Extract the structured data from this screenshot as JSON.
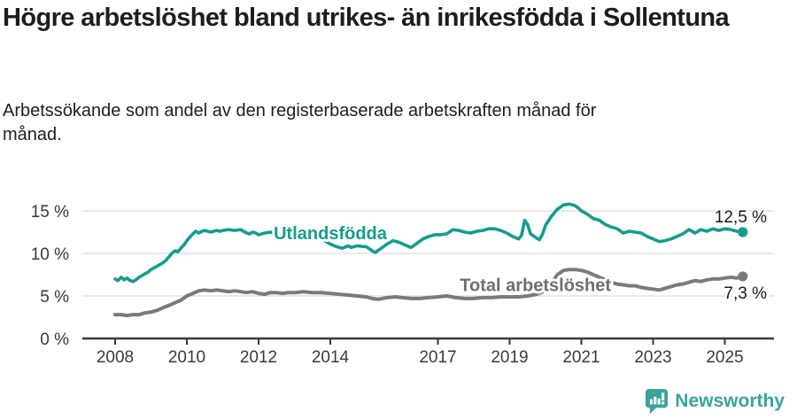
{
  "header": {
    "title": "Högre arbetslöshet bland utrikes- än inrikesfödda i Sollentuna",
    "subtitle": "Arbetssökande som andel av den registerbaserade arbetskraften månad för månad."
  },
  "footer": {
    "brand": "Newsworthy",
    "logo_icon": "bar-chart-speech-bubble-icon"
  },
  "colors": {
    "accent_teal": "#169b8d",
    "series_gray": "#7a7a7a",
    "gray_label": "#6e6e6e",
    "gridline": "#dcdcdc",
    "axis": "#3a3a3a",
    "text": "#1d1d1d",
    "brand_teal": "#3aa39b"
  },
  "chart_data": {
    "type": "line",
    "title": "Högre arbetslöshet bland utrikes- än inrikesfödda i Sollentuna",
    "subtitle": "Arbetssökande som andel av den registerbaserade arbetskraften månad för månad.",
    "xlabel": "",
    "ylabel": "",
    "grid": true,
    "legend_position": "inline-labels",
    "x_axis": {
      "range": [
        2007.1,
        2025.95
      ],
      "ticks": [
        2008,
        2010,
        2012,
        2014,
        2017,
        2019,
        2021,
        2023,
        2025
      ]
    },
    "y_axis": {
      "range": [
        0,
        16.8
      ],
      "ticks": [
        0,
        5,
        10,
        15
      ],
      "tick_labels": [
        "0 %",
        "5 %",
        "10 %",
        "15 %"
      ]
    },
    "series": [
      {
        "name": "Total arbetslöshet",
        "color": "#7a7a7a",
        "label_color": "#6e6e6e",
        "end_value": 7.3,
        "end_label": "7,3 %",
        "end_label_side": "below",
        "inline_label": {
          "x": 2019.72,
          "y": 6.3
        },
        "points": [
          [
            2008.0,
            2.8
          ],
          [
            2008.17,
            2.8
          ],
          [
            2008.33,
            2.7
          ],
          [
            2008.5,
            2.8
          ],
          [
            2008.67,
            2.8
          ],
          [
            2008.83,
            3.0
          ],
          [
            2009.0,
            3.1
          ],
          [
            2009.17,
            3.3
          ],
          [
            2009.33,
            3.6
          ],
          [
            2009.5,
            3.9
          ],
          [
            2009.67,
            4.2
          ],
          [
            2009.83,
            4.5
          ],
          [
            2010.0,
            5.0
          ],
          [
            2010.17,
            5.3
          ],
          [
            2010.33,
            5.6
          ],
          [
            2010.5,
            5.7
          ],
          [
            2010.67,
            5.6
          ],
          [
            2010.83,
            5.7
          ],
          [
            2011.0,
            5.6
          ],
          [
            2011.17,
            5.5
          ],
          [
            2011.33,
            5.6
          ],
          [
            2011.5,
            5.5
          ],
          [
            2011.67,
            5.4
          ],
          [
            2011.83,
            5.5
          ],
          [
            2012.0,
            5.3
          ],
          [
            2012.17,
            5.2
          ],
          [
            2012.33,
            5.4
          ],
          [
            2012.5,
            5.4
          ],
          [
            2012.67,
            5.3
          ],
          [
            2012.83,
            5.4
          ],
          [
            2013.0,
            5.4
          ],
          [
            2013.25,
            5.5
          ],
          [
            2013.5,
            5.4
          ],
          [
            2013.75,
            5.4
          ],
          [
            2014.0,
            5.3
          ],
          [
            2014.25,
            5.2
          ],
          [
            2014.5,
            5.1
          ],
          [
            2014.75,
            5.0
          ],
          [
            2015.0,
            4.9
          ],
          [
            2015.17,
            4.7
          ],
          [
            2015.33,
            4.6
          ],
          [
            2015.58,
            4.8
          ],
          [
            2015.83,
            4.9
          ],
          [
            2016.0,
            4.8
          ],
          [
            2016.25,
            4.7
          ],
          [
            2016.5,
            4.7
          ],
          [
            2016.75,
            4.8
          ],
          [
            2017.0,
            4.9
          ],
          [
            2017.25,
            5.0
          ],
          [
            2017.5,
            4.8
          ],
          [
            2017.75,
            4.7
          ],
          [
            2018.0,
            4.7
          ],
          [
            2018.25,
            4.8
          ],
          [
            2018.5,
            4.8
          ],
          [
            2018.75,
            4.9
          ],
          [
            2019.0,
            4.9
          ],
          [
            2019.25,
            4.9
          ],
          [
            2019.5,
            5.0
          ],
          [
            2019.75,
            5.2
          ],
          [
            2020.0,
            5.6
          ],
          [
            2020.17,
            6.5
          ],
          [
            2020.33,
            7.5
          ],
          [
            2020.5,
            8.0
          ],
          [
            2020.67,
            8.1
          ],
          [
            2020.83,
            8.1
          ],
          [
            2021.0,
            8.0
          ],
          [
            2021.17,
            7.8
          ],
          [
            2021.33,
            7.5
          ],
          [
            2021.5,
            7.2
          ],
          [
            2021.67,
            6.9
          ],
          [
            2021.83,
            6.6
          ],
          [
            2022.0,
            6.4
          ],
          [
            2022.17,
            6.3
          ],
          [
            2022.33,
            6.2
          ],
          [
            2022.5,
            6.2
          ],
          [
            2022.67,
            6.0
          ],
          [
            2022.83,
            5.9
          ],
          [
            2023.0,
            5.8
          ],
          [
            2023.17,
            5.7
          ],
          [
            2023.33,
            5.9
          ],
          [
            2023.5,
            6.1
          ],
          [
            2023.67,
            6.3
          ],
          [
            2023.83,
            6.4
          ],
          [
            2024.0,
            6.6
          ],
          [
            2024.17,
            6.8
          ],
          [
            2024.33,
            6.7
          ],
          [
            2024.5,
            6.9
          ],
          [
            2024.67,
            7.0
          ],
          [
            2024.83,
            7.0
          ],
          [
            2025.0,
            7.1
          ],
          [
            2025.17,
            7.2
          ],
          [
            2025.33,
            7.1
          ],
          [
            2025.5,
            7.3
          ]
        ]
      },
      {
        "name": "Utlandsfödda",
        "color": "#169b8d",
        "label_color": "#169b8d",
        "end_value": 12.5,
        "end_label": "12,5 %",
        "end_label_side": "above",
        "inline_label": {
          "x": 2014.0,
          "y": 12.4
        },
        "points": [
          [
            2008.0,
            7.0
          ],
          [
            2008.08,
            6.8
          ],
          [
            2008.17,
            7.2
          ],
          [
            2008.25,
            6.9
          ],
          [
            2008.33,
            7.1
          ],
          [
            2008.42,
            6.8
          ],
          [
            2008.5,
            6.7
          ],
          [
            2008.58,
            6.9
          ],
          [
            2008.67,
            7.2
          ],
          [
            2008.75,
            7.4
          ],
          [
            2008.83,
            7.6
          ],
          [
            2008.92,
            7.8
          ],
          [
            2009.0,
            8.1
          ],
          [
            2009.17,
            8.5
          ],
          [
            2009.33,
            8.9
          ],
          [
            2009.42,
            9.2
          ],
          [
            2009.5,
            9.6
          ],
          [
            2009.58,
            10.0
          ],
          [
            2009.67,
            10.3
          ],
          [
            2009.75,
            10.2
          ],
          [
            2009.83,
            10.6
          ],
          [
            2009.92,
            11.0
          ],
          [
            2010.0,
            11.5
          ],
          [
            2010.08,
            11.9
          ],
          [
            2010.17,
            12.3
          ],
          [
            2010.25,
            12.6
          ],
          [
            2010.33,
            12.4
          ],
          [
            2010.42,
            12.6
          ],
          [
            2010.5,
            12.7
          ],
          [
            2010.58,
            12.6
          ],
          [
            2010.67,
            12.5
          ],
          [
            2010.75,
            12.6
          ],
          [
            2010.83,
            12.7
          ],
          [
            2010.92,
            12.6
          ],
          [
            2011.0,
            12.7
          ],
          [
            2011.17,
            12.8
          ],
          [
            2011.33,
            12.7
          ],
          [
            2011.5,
            12.8
          ],
          [
            2011.58,
            12.6
          ],
          [
            2011.67,
            12.4
          ],
          [
            2011.75,
            12.3
          ],
          [
            2011.83,
            12.5
          ],
          [
            2011.92,
            12.4
          ],
          [
            2012.0,
            12.2
          ],
          [
            2012.17,
            12.4
          ],
          [
            2012.33,
            12.5
          ],
          [
            2012.5,
            12.3
          ],
          [
            2012.67,
            12.2
          ],
          [
            2012.83,
            12.1
          ],
          [
            2013.0,
            12.2
          ],
          [
            2013.17,
            12.1
          ],
          [
            2013.33,
            12.0
          ],
          [
            2013.5,
            11.9
          ],
          [
            2013.67,
            11.8
          ],
          [
            2013.83,
            11.5
          ],
          [
            2014.0,
            11.1
          ],
          [
            2014.17,
            10.8
          ],
          [
            2014.33,
            10.6
          ],
          [
            2014.5,
            10.9
          ],
          [
            2014.58,
            10.7
          ],
          [
            2014.75,
            10.9
          ],
          [
            2014.92,
            10.8
          ],
          [
            2015.0,
            10.8
          ],
          [
            2015.17,
            10.3
          ],
          [
            2015.25,
            10.1
          ],
          [
            2015.42,
            10.6
          ],
          [
            2015.58,
            11.1
          ],
          [
            2015.75,
            11.5
          ],
          [
            2015.92,
            11.3
          ],
          [
            2016.08,
            11.0
          ],
          [
            2016.25,
            10.7
          ],
          [
            2016.42,
            11.2
          ],
          [
            2016.58,
            11.7
          ],
          [
            2016.75,
            12.0
          ],
          [
            2016.92,
            12.2
          ],
          [
            2017.08,
            12.2
          ],
          [
            2017.25,
            12.3
          ],
          [
            2017.42,
            12.8
          ],
          [
            2017.58,
            12.7
          ],
          [
            2017.75,
            12.5
          ],
          [
            2017.92,
            12.4
          ],
          [
            2018.08,
            12.6
          ],
          [
            2018.25,
            12.7
          ],
          [
            2018.42,
            12.9
          ],
          [
            2018.58,
            12.9
          ],
          [
            2018.75,
            12.7
          ],
          [
            2018.92,
            12.4
          ],
          [
            2019.08,
            12.0
          ],
          [
            2019.25,
            11.7
          ],
          [
            2019.33,
            12.1
          ],
          [
            2019.42,
            13.9
          ],
          [
            2019.5,
            13.4
          ],
          [
            2019.58,
            12.3
          ],
          [
            2019.75,
            11.8
          ],
          [
            2019.83,
            11.6
          ],
          [
            2019.92,
            12.3
          ],
          [
            2020.0,
            13.3
          ],
          [
            2020.17,
            14.4
          ],
          [
            2020.33,
            15.2
          ],
          [
            2020.5,
            15.7
          ],
          [
            2020.67,
            15.8
          ],
          [
            2020.83,
            15.6
          ],
          [
            2020.92,
            15.3
          ],
          [
            2021.0,
            15.0
          ],
          [
            2021.17,
            14.6
          ],
          [
            2021.33,
            14.1
          ],
          [
            2021.5,
            13.9
          ],
          [
            2021.67,
            13.4
          ],
          [
            2021.83,
            13.1
          ],
          [
            2022.0,
            12.9
          ],
          [
            2022.17,
            12.4
          ],
          [
            2022.33,
            12.6
          ],
          [
            2022.5,
            12.5
          ],
          [
            2022.67,
            12.4
          ],
          [
            2022.83,
            12.0
          ],
          [
            2023.0,
            11.7
          ],
          [
            2023.17,
            11.4
          ],
          [
            2023.33,
            11.5
          ],
          [
            2023.5,
            11.7
          ],
          [
            2023.67,
            12.0
          ],
          [
            2023.83,
            12.3
          ],
          [
            2024.0,
            12.8
          ],
          [
            2024.17,
            12.4
          ],
          [
            2024.33,
            12.8
          ],
          [
            2024.5,
            12.6
          ],
          [
            2024.67,
            12.9
          ],
          [
            2024.83,
            12.7
          ],
          [
            2025.0,
            12.9
          ],
          [
            2025.17,
            12.8
          ],
          [
            2025.33,
            12.6
          ],
          [
            2025.5,
            12.5
          ]
        ]
      }
    ]
  }
}
